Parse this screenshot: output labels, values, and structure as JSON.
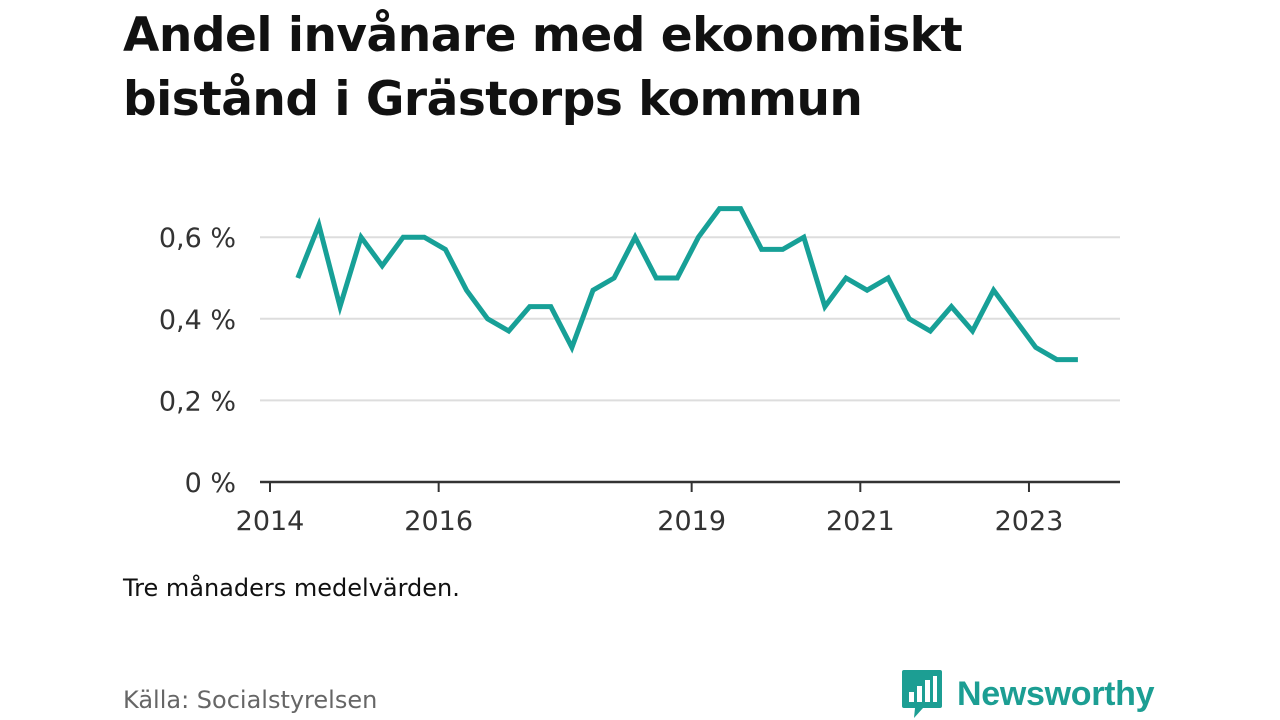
{
  "title": "Andel invånare med ekonomiskt bistånd i Grästorps kommun",
  "note": "Tre månaders medelvärden.",
  "source": "Källa: Socialstyrelsen",
  "brand": "Newsworthy",
  "colors": {
    "line": "#17a097",
    "brand": "#1c9e93",
    "grid": "#dddddd",
    "axis": "#333333"
  },
  "chart_data": {
    "type": "line",
    "title": "Andel invånare med ekonomiskt bistånd i Grästorps kommun",
    "xlabel": "",
    "ylabel": "",
    "ylim": [
      0,
      0.7
    ],
    "xlim": [
      2014.0,
      2024.0
    ],
    "yticks": [
      0,
      0.2,
      0.4,
      0.6
    ],
    "ytick_labels": [
      "0 %",
      "0,2 %",
      "0,4 %",
      "0,6 %"
    ],
    "xticks": [
      2014,
      2016,
      2019,
      2021,
      2023
    ],
    "xtick_labels": [
      "2014",
      "2016",
      "2019",
      "2021",
      "2023"
    ],
    "grid": true,
    "series": [
      {
        "x": [
          2014.33,
          2014.58,
          2014.83,
          2015.08,
          2015.33,
          2015.58,
          2015.83,
          2016.08,
          2016.33,
          2016.58,
          2016.83,
          2017.08,
          2017.33,
          2017.58,
          2017.83,
          2018.08,
          2018.33,
          2018.58,
          2018.83,
          2019.08,
          2019.33,
          2019.58,
          2019.83,
          2020.08,
          2020.33,
          2020.58,
          2020.83,
          2021.08,
          2021.33,
          2021.58,
          2021.83,
          2022.08,
          2022.33,
          2022.58,
          2022.83,
          2023.08,
          2023.33,
          2023.58
        ],
        "values": [
          0.5,
          0.63,
          0.43,
          0.6,
          0.53,
          0.6,
          0.6,
          0.57,
          0.47,
          0.4,
          0.37,
          0.43,
          0.43,
          0.33,
          0.47,
          0.5,
          0.6,
          0.5,
          0.5,
          0.6,
          0.67,
          0.67,
          0.57,
          0.57,
          0.6,
          0.43,
          0.5,
          0.47,
          0.5,
          0.4,
          0.37,
          0.43,
          0.37,
          0.47,
          0.4,
          0.33,
          0.3,
          0.3
        ]
      }
    ]
  }
}
